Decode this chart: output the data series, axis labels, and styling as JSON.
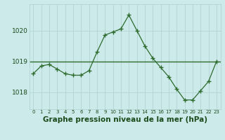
{
  "hours": [
    0,
    1,
    2,
    3,
    4,
    5,
    6,
    7,
    8,
    9,
    10,
    11,
    12,
    13,
    14,
    15,
    16,
    17,
    18,
    19,
    20,
    21,
    22,
    23
  ],
  "pressure": [
    1018.6,
    1018.85,
    1018.9,
    1018.75,
    1018.6,
    1018.55,
    1018.55,
    1018.7,
    1019.3,
    1019.85,
    1019.95,
    1020.05,
    1020.5,
    1020.0,
    1019.5,
    1019.1,
    1018.8,
    1018.5,
    1018.1,
    1017.75,
    1017.75,
    1018.05,
    1018.35,
    1019.0
  ],
  "mean_line": 1019.0,
  "line_color": "#2d6b2d",
  "mean_color": "#2d6b2d",
  "bg_color": "#cdeaea",
  "grid_color": "#aecfcf",
  "plot_bg": "#cdeaea",
  "title": "Graphe pression niveau de la mer (hPa)",
  "title_color": "#1a4a1a",
  "title_fontsize": 7.5,
  "ylim": [
    1017.45,
    1020.85
  ],
  "yticks": [
    1018,
    1019,
    1020
  ],
  "marker": "+",
  "marker_size": 4,
  "linewidth": 0.9
}
